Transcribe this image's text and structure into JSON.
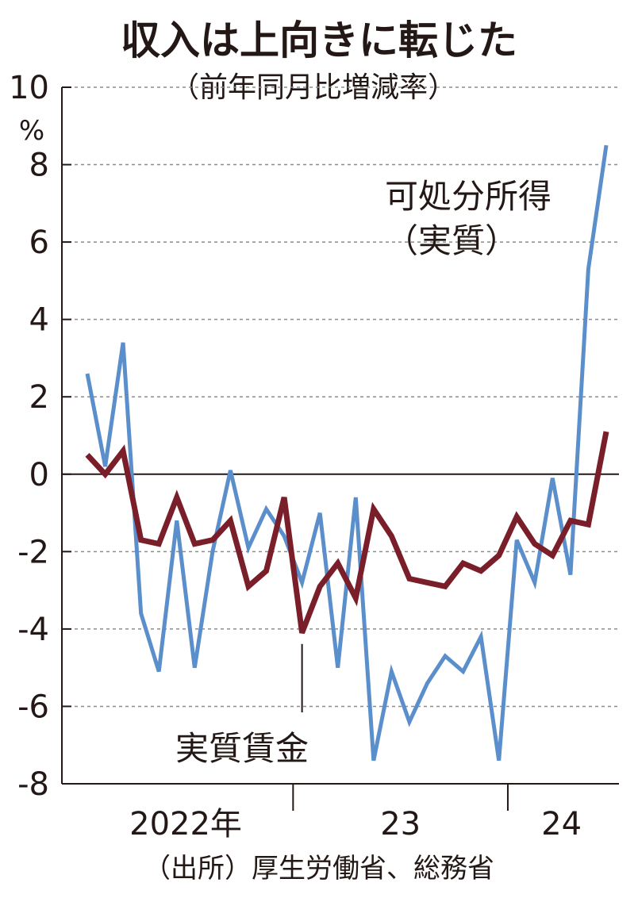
{
  "chart_data": {
    "type": "line",
    "title": "収入は上向きに転じた",
    "subtitle": "（前年同月比増減率）",
    "y_unit": "%",
    "ylim": [
      -8,
      10
    ],
    "y_ticks": [
      "10",
      "8",
      "6",
      "4",
      "2",
      "0",
      "-2",
      "-4",
      "-6",
      "-8"
    ],
    "grid": "horizontal dashed",
    "x_labels": [
      "2022年",
      "23",
      "24"
    ],
    "source": "（出所）厚生労働省、総務省",
    "series": [
      {
        "name": "可処分所得",
        "label_lines": [
          "可処分所得",
          "（実質）"
        ],
        "color": "#5b8fcc",
        "values": [
          2.6,
          0.2,
          3.4,
          -3.6,
          -5.1,
          -1.2,
          -5.0,
          -2.0,
          0.1,
          -1.9,
          -0.9,
          -1.6,
          -2.8,
          -1.0,
          -5.0,
          -0.6,
          -7.4,
          -5.1,
          -6.4,
          -5.4,
          -4.7,
          -5.1,
          -4.2,
          -7.4,
          -1.7,
          -2.8,
          -0.1,
          -2.6,
          5.3,
          8.5
        ]
      },
      {
        "name": "実質賃金",
        "color": "#7a1e2a",
        "values": [
          0.5,
          0.0,
          0.6,
          -1.7,
          -1.8,
          -0.6,
          -1.8,
          -1.7,
          -1.2,
          -2.9,
          -2.5,
          -0.6,
          -4.1,
          -2.9,
          -2.3,
          -3.2,
          -0.9,
          -1.6,
          -2.7,
          -2.8,
          -2.9,
          -2.3,
          -2.5,
          -2.1,
          -1.1,
          -1.8,
          -2.1,
          -1.2,
          -1.3,
          1.1
        ]
      }
    ]
  }
}
